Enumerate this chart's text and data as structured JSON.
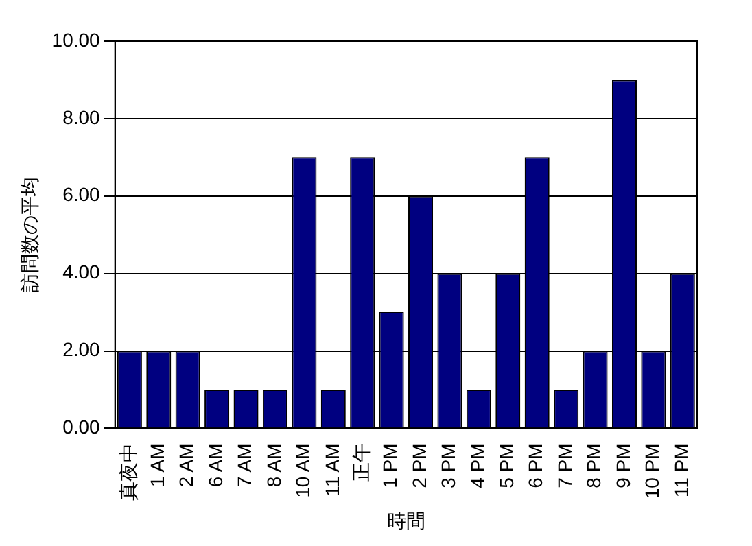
{
  "chart_data": {
    "type": "bar",
    "xlabel": "時間",
    "ylabel": "訪問数の平均",
    "categories": [
      "真夜中",
      "1 AM",
      "2 AM",
      "6 AM",
      "7 AM",
      "8 AM",
      "10 AM",
      "11 AM",
      "正午",
      "1 PM",
      "2 PM",
      "3 PM",
      "4 PM",
      "5 PM",
      "6 PM",
      "7 PM",
      "8 PM",
      "9 PM",
      "10 PM",
      "11 PM"
    ],
    "values": [
      2,
      2,
      2,
      1,
      1,
      1,
      7,
      1,
      7,
      3,
      6,
      4,
      1,
      4,
      7,
      1,
      2,
      9,
      2,
      4
    ],
    "color": "#000080",
    "ylim": [
      0,
      10
    ],
    "yticks": [
      {
        "value": 0,
        "label": "0.00"
      },
      {
        "value": 2,
        "label": "2.00"
      },
      {
        "value": 4,
        "label": "4.00"
      },
      {
        "value": 6,
        "label": "6.00"
      },
      {
        "value": 8,
        "label": "8.00"
      },
      {
        "value": 10,
        "label": "10.00"
      }
    ],
    "grid": "y",
    "legend": false
  }
}
